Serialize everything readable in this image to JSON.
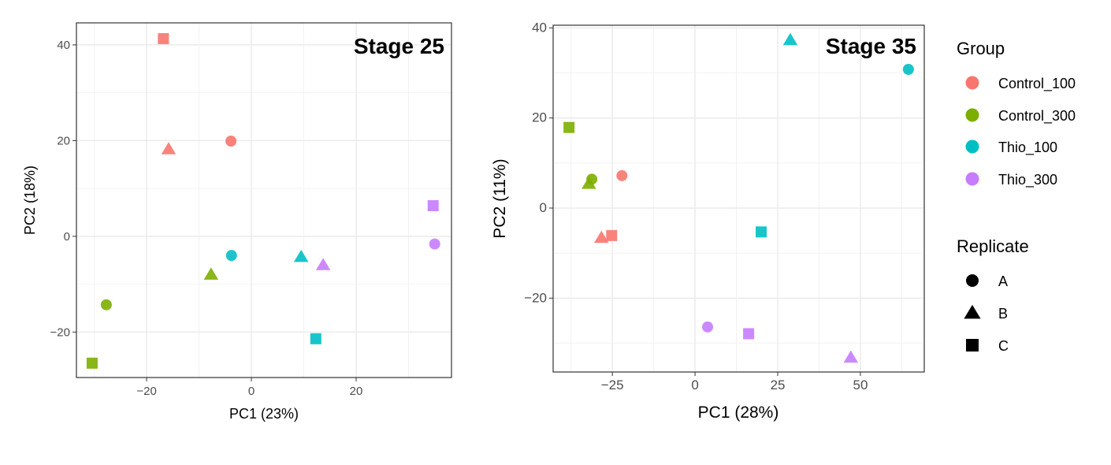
{
  "chart_data": [
    {
      "type": "scatter",
      "title": "Stage 25",
      "xlabel": "PC1 (23%)",
      "ylabel": "PC2 (18%)",
      "xlim": [
        -33.4,
        38.2
      ],
      "ylim": [
        -29.5,
        44.6
      ],
      "xticks": [
        -20,
        0,
        20
      ],
      "yticks": [
        -20,
        0,
        20,
        40
      ],
      "grid": true,
      "points": [
        {
          "group": "Control_100",
          "replicate": "A",
          "x": -3.9,
          "y": 19.9
        },
        {
          "group": "Control_100",
          "replicate": "B",
          "x": -15.8,
          "y": 18.2
        },
        {
          "group": "Control_100",
          "replicate": "C",
          "x": -16.8,
          "y": 41.3
        },
        {
          "group": "Control_300",
          "replicate": "A",
          "x": -27.7,
          "y": -14.3
        },
        {
          "group": "Control_300",
          "replicate": "B",
          "x": -7.7,
          "y": -8.0
        },
        {
          "group": "Control_300",
          "replicate": "C",
          "x": -30.4,
          "y": -26.5
        },
        {
          "group": "Thio_100",
          "replicate": "A",
          "x": -3.8,
          "y": -4.0
        },
        {
          "group": "Thio_100",
          "replicate": "B",
          "x": 9.5,
          "y": -4.3
        },
        {
          "group": "Thio_100",
          "replicate": "C",
          "x": 12.3,
          "y": -21.4
        },
        {
          "group": "Thio_300",
          "replicate": "A",
          "x": 35.0,
          "y": -1.6
        },
        {
          "group": "Thio_300",
          "replicate": "B",
          "x": 13.7,
          "y": -6.0
        },
        {
          "group": "Thio_300",
          "replicate": "C",
          "x": 34.7,
          "y": 6.4
        }
      ]
    },
    {
      "type": "scatter",
      "title": "Stage 35",
      "xlabel": "PC1 (28%)",
      "ylabel": "PC2 (11%)",
      "xlim": [
        -42.9,
        69.3
      ],
      "ylim": [
        -36.4,
        40.6
      ],
      "xticks": [
        -25,
        0,
        25,
        50
      ],
      "yticks": [
        -20,
        0,
        20,
        40
      ],
      "grid": true,
      "points": [
        {
          "group": "Control_100",
          "replicate": "A",
          "x": -22.1,
          "y": 7.2
        },
        {
          "group": "Control_100",
          "replicate": "B",
          "x": -28.3,
          "y": -6.6
        },
        {
          "group": "Control_100",
          "replicate": "C",
          "x": -25.2,
          "y": -6.1
        },
        {
          "group": "Control_300",
          "replicate": "A",
          "x": -31.2,
          "y": 6.4
        },
        {
          "group": "Control_300",
          "replicate": "B",
          "x": -32.1,
          "y": 5.4
        },
        {
          "group": "Control_300",
          "replicate": "C",
          "x": -38.1,
          "y": 17.9
        },
        {
          "group": "Thio_100",
          "replicate": "A",
          "x": 64.5,
          "y": 30.8
        },
        {
          "group": "Thio_100",
          "replicate": "B",
          "x": 28.8,
          "y": 37.3
        },
        {
          "group": "Thio_100",
          "replicate": "C",
          "x": 20.0,
          "y": -5.3
        },
        {
          "group": "Thio_300",
          "replicate": "A",
          "x": 3.8,
          "y": -26.4
        },
        {
          "group": "Thio_300",
          "replicate": "B",
          "x": 47.1,
          "y": -33.2
        },
        {
          "group": "Thio_300",
          "replicate": "C",
          "x": 16.2,
          "y": -27.9
        }
      ]
    }
  ],
  "legend": {
    "placement": "right",
    "group_title": "Group",
    "groups": [
      {
        "label": "Control_100",
        "color": "#F8766D"
      },
      {
        "label": "Control_300",
        "color": "#7CAE00"
      },
      {
        "label": "Thio_100",
        "color": "#00BFC4"
      },
      {
        "label": "Thio_300",
        "color": "#C77CFF"
      }
    ],
    "replicate_title": "Replicate",
    "replicates": [
      {
        "label": "A",
        "shape": "circle"
      },
      {
        "label": "B",
        "shape": "triangle"
      },
      {
        "label": "C",
        "shape": "square"
      }
    ]
  }
}
